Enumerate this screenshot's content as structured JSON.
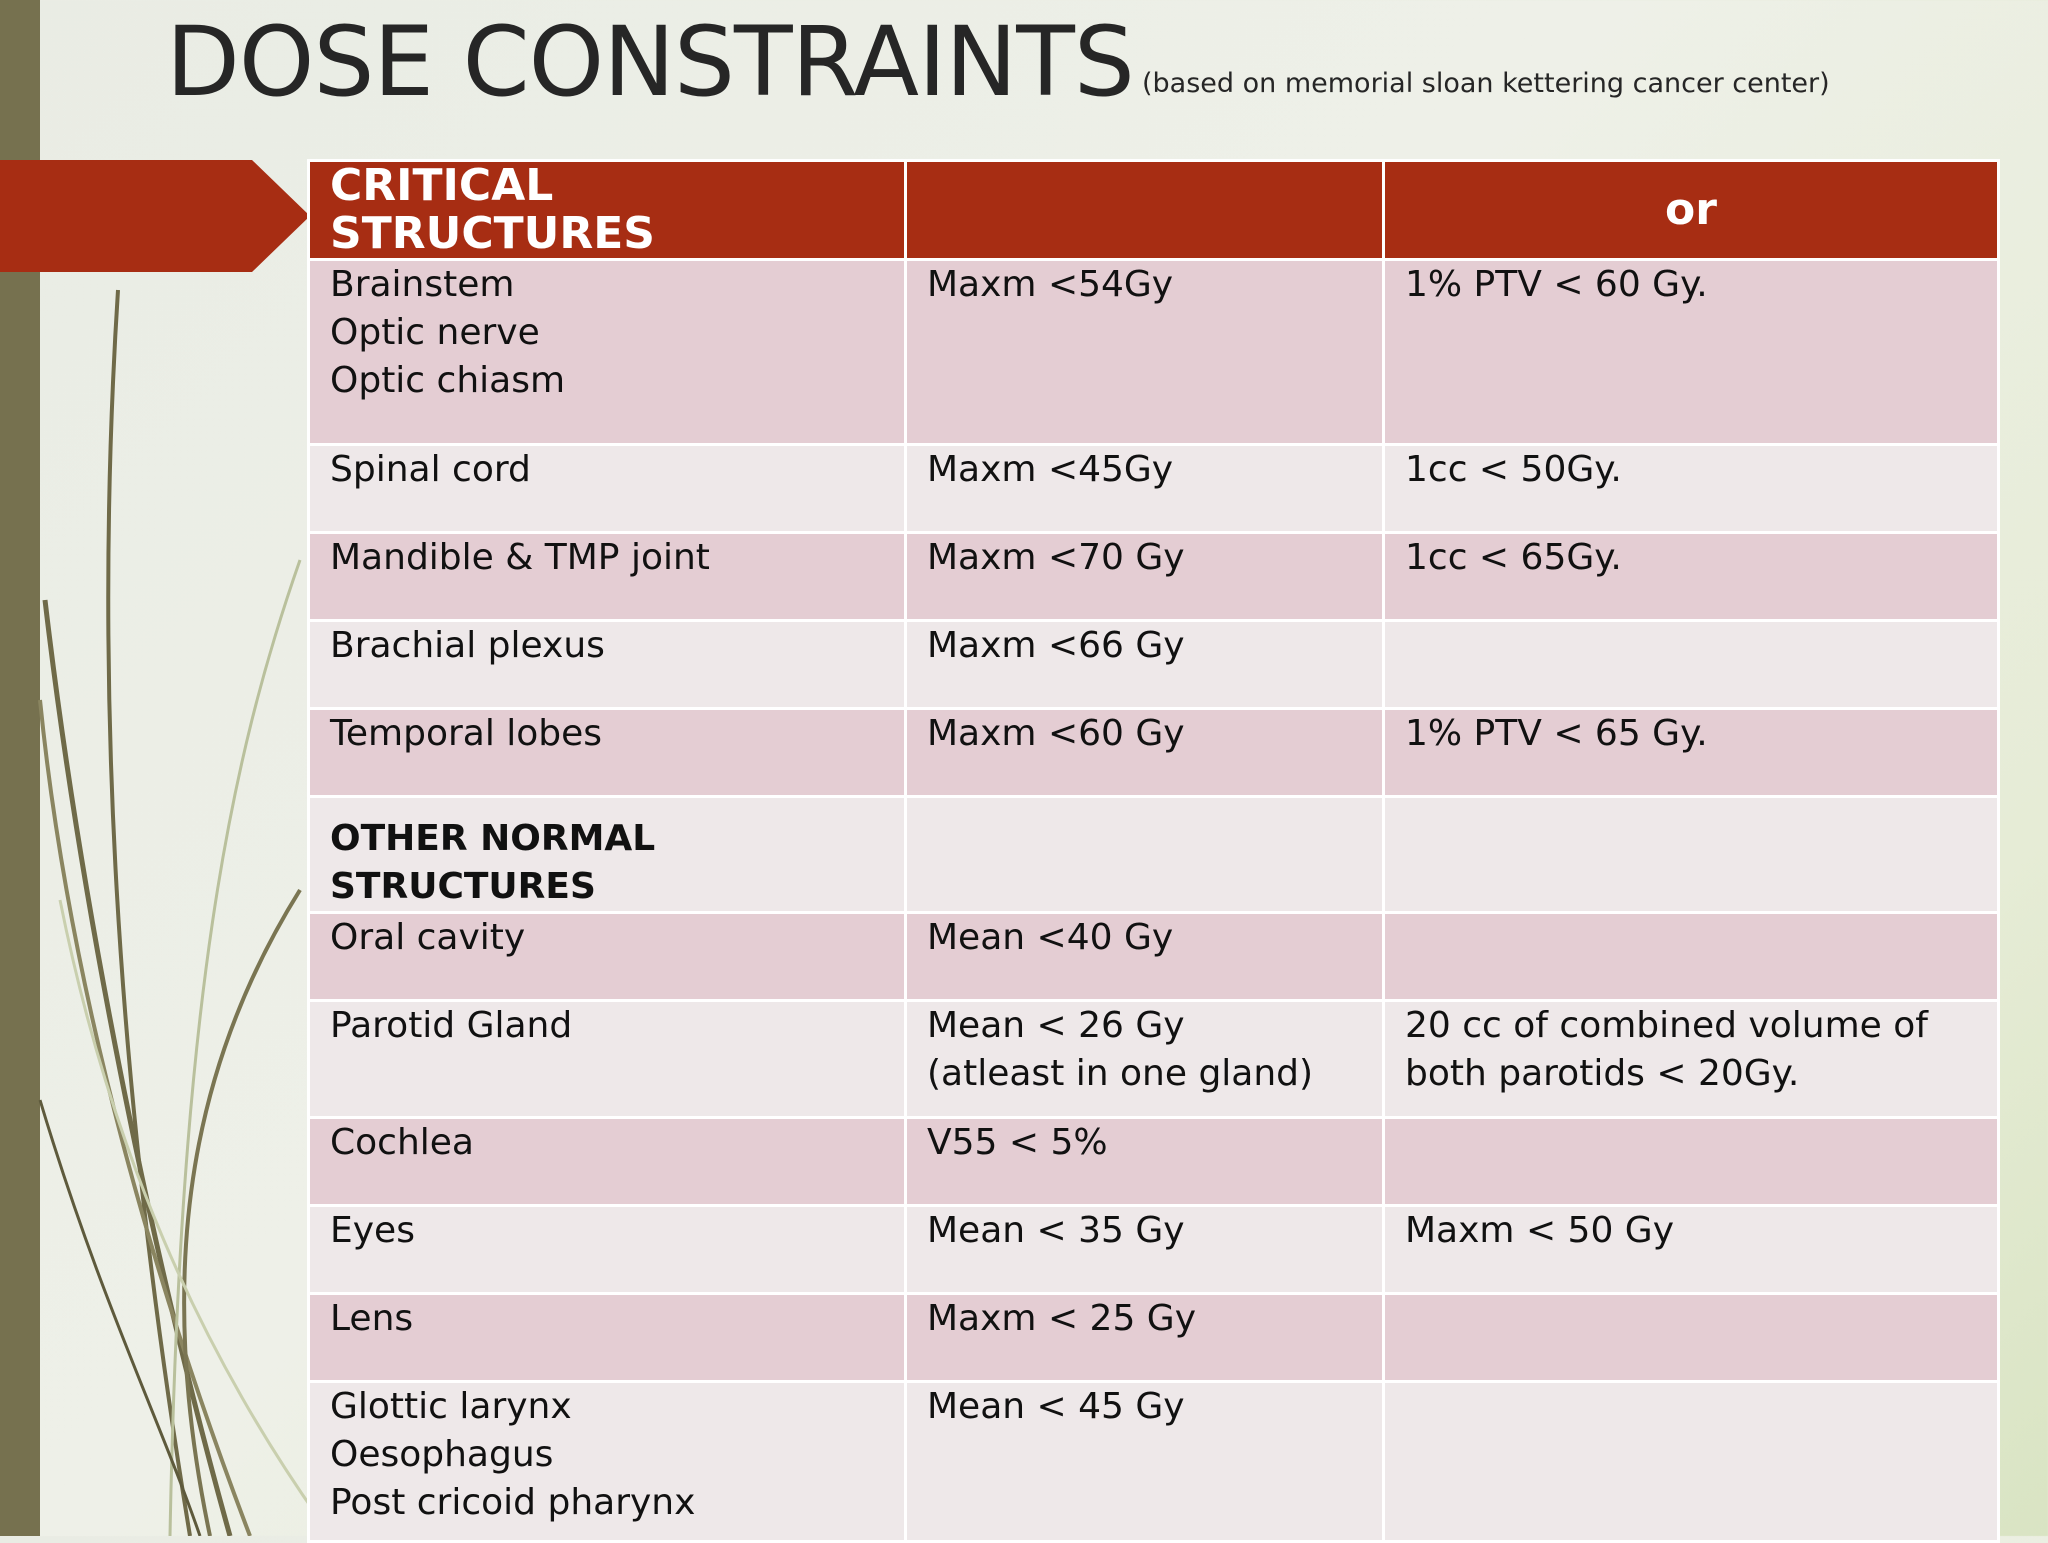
{
  "title": "DOSE CONSTRAINTS",
  "subtitle": "(based on memorial sloan kettering cancer center)",
  "table": {
    "headers": [
      "CRITICAL STRUCTURES",
      "",
      "or"
    ],
    "rows": [
      {
        "structure": [
          "Brainstem",
          "Optic nerve",
          "Optic chiasm"
        ],
        "limit": [
          "Maxm <54Gy"
        ],
        "alt": [
          "1% PTV < 60 Gy."
        ]
      },
      {
        "structure": [
          "Spinal cord"
        ],
        "limit": [
          "Maxm <45Gy"
        ],
        "alt": [
          "1cc < 50Gy."
        ]
      },
      {
        "structure": [
          "Mandible & TMP joint"
        ],
        "limit": [
          "Maxm <70 Gy"
        ],
        "alt": [
          "1cc < 65Gy."
        ]
      },
      {
        "structure": [
          "Brachial plexus"
        ],
        "limit": [
          "Maxm <66 Gy"
        ],
        "alt": []
      },
      {
        "structure": [
          "Temporal lobes"
        ],
        "limit": [
          "Maxm <60 Gy"
        ],
        "alt": [
          "1% PTV < 65 Gy."
        ]
      },
      {
        "structure": [
          "OTHER NORMAL",
          "STRUCTURES"
        ],
        "limit": [],
        "alt": []
      },
      {
        "structure": [
          "Oral cavity"
        ],
        "limit": [
          "Mean <40 Gy"
        ],
        "alt": []
      },
      {
        "structure": [
          "Parotid Gland"
        ],
        "limit": [
          "Mean < 26 Gy",
          "(atleast in one gland)"
        ],
        "alt": [
          "20 cc of combined volume of",
          "both parotids < 20Gy."
        ]
      },
      {
        "structure": [
          "Cochlea"
        ],
        "limit": [
          "V55 < 5%"
        ],
        "alt": []
      },
      {
        "structure": [
          "Eyes"
        ],
        "limit": [
          "Mean < 35 Gy"
        ],
        "alt": [
          "Maxm < 50 Gy"
        ]
      },
      {
        "structure": [
          "Lens"
        ],
        "limit": [
          "Maxm < 25 Gy"
        ],
        "alt": []
      },
      {
        "structure": [
          "Glottic larynx",
          "Oesophagus",
          "Post cricoid pharynx"
        ],
        "limit": [
          "Mean < 45 Gy"
        ],
        "alt": []
      }
    ]
  }
}
